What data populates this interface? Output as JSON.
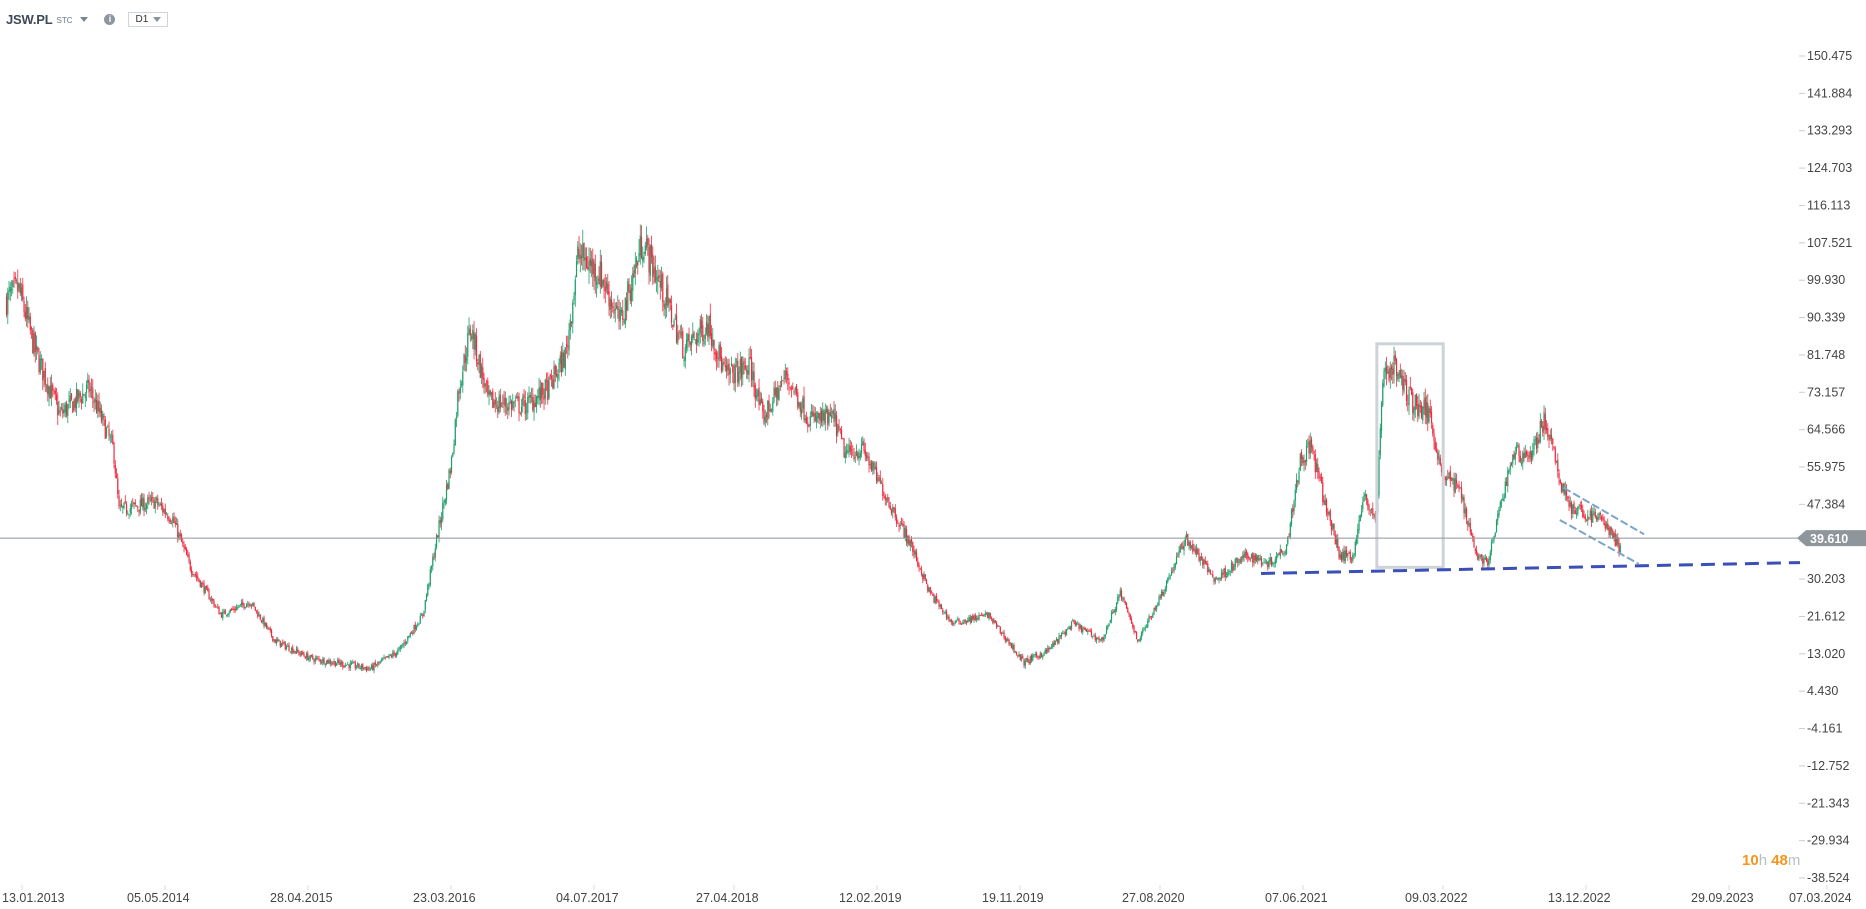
{
  "header": {
    "symbol": "JSW.PL",
    "source": "STC",
    "timeframe": "D1"
  },
  "timer": {
    "hours": "10",
    "h": "h",
    "minutes": "48",
    "m": "m"
  },
  "colors": {
    "up": "#1f9e6a",
    "down": "#f0293e",
    "price_line": "#8e959b",
    "support": "#3b4fb8",
    "channel": "#7aa6c8",
    "box": "#cdd3d9"
  },
  "chart_data": {
    "type": "candlestick",
    "title": "JSW.PL D1",
    "y_ticks": [
      "150.475",
      "141.884",
      "133.293",
      "124.703",
      "116.113",
      "107.521",
      "99.930",
      "90.339",
      "81.748",
      "73.157",
      "64.566",
      "55.975",
      "47.384",
      "39.610",
      "30.203",
      "21.612",
      "13.020",
      "4.430",
      "-4.161",
      "-12.752",
      "-21.343",
      "-29.934",
      "-38.524"
    ],
    "ylim": [
      -38.524,
      150.475
    ],
    "x_ticks": [
      {
        "label": "13.01.2013",
        "t": 2013.03
      },
      {
        "label": "05.05.2014",
        "t": 2014.34
      },
      {
        "label": "28.04.2015",
        "t": 2015.32
      },
      {
        "label": "23.03.2016",
        "t": 2016.22
      },
      {
        "label": "04.07.2017",
        "t": 2017.51
      },
      {
        "label": "27.04.2018",
        "t": 2018.32
      },
      {
        "label": "12.02.2019",
        "t": 2019.12
      },
      {
        "label": "19.11.2019",
        "t": 2019.88
      },
      {
        "label": "27.08.2020",
        "t": 2020.65
      },
      {
        "label": "07.06.2021",
        "t": 2021.43
      },
      {
        "label": "09.03.2022",
        "t": 2022.19
      },
      {
        "label": "13.12.2022",
        "t": 2022.95
      },
      {
        "label": "29.09.2023",
        "t": 2023.74
      },
      {
        "label": "07.03.2024",
        "t": 2024.18
      }
    ],
    "current_price": {
      "value": 39.61,
      "label": "39.610"
    },
    "close_path": [
      [
        2012.87,
        94.4
      ],
      [
        2012.98,
        97
      ],
      [
        2013.14,
        82
      ],
      [
        2013.36,
        68
      ],
      [
        2013.63,
        74
      ],
      [
        2013.85,
        60
      ],
      [
        2013.9,
        46
      ],
      [
        2014.23,
        48
      ],
      [
        2014.38,
        44
      ],
      [
        2014.5,
        33
      ],
      [
        2014.71,
        22
      ],
      [
        2014.91,
        25
      ],
      [
        2015.08,
        16
      ],
      [
        2015.32,
        12
      ],
      [
        2015.7,
        9.6
      ],
      [
        2015.88,
        13.7
      ],
      [
        2016.03,
        22
      ],
      [
        2016.11,
        38
      ],
      [
        2016.21,
        57
      ],
      [
        2016.27,
        74
      ],
      [
        2016.38,
        88
      ],
      [
        2016.54,
        71
      ],
      [
        2016.87,
        70
      ],
      [
        2017.08,
        74
      ],
      [
        2017.24,
        82
      ],
      [
        2017.35,
        105
      ],
      [
        2017.54,
        100
      ],
      [
        2017.65,
        89
      ],
      [
        2017.78,
        108
      ],
      [
        2017.89,
        97
      ],
      [
        2018.02,
        83
      ],
      [
        2018.16,
        89
      ],
      [
        2018.26,
        77
      ],
      [
        2018.4,
        79
      ],
      [
        2018.47,
        67
      ],
      [
        2018.6,
        77
      ],
      [
        2018.73,
        67
      ],
      [
        2018.87,
        67
      ],
      [
        2018.93,
        59
      ],
      [
        2019.03,
        60
      ],
      [
        2019.16,
        49
      ],
      [
        2019.29,
        38
      ],
      [
        2019.39,
        27
      ],
      [
        2019.51,
        20
      ],
      [
        2019.7,
        22
      ],
      [
        2019.89,
        11
      ],
      [
        2020.02,
        13.7
      ],
      [
        2020.16,
        20
      ],
      [
        2020.32,
        16
      ],
      [
        2020.42,
        27
      ],
      [
        2020.52,
        16
      ],
      [
        2020.65,
        27
      ],
      [
        2020.78,
        39.7
      ],
      [
        2020.94,
        30
      ],
      [
        2021.11,
        35.6
      ],
      [
        2021.24,
        34
      ],
      [
        2021.33,
        38
      ],
      [
        2021.4,
        57
      ],
      [
        2021.46,
        61
      ],
      [
        2021.53,
        49
      ],
      [
        2021.62,
        35.6
      ],
      [
        2021.69,
        35.6
      ],
      [
        2021.75,
        49
      ],
      [
        2021.82,
        44
      ],
      [
        2021.85,
        77
      ],
      [
        2021.91,
        79.4
      ],
      [
        2022.01,
        71
      ],
      [
        2022.11,
        68
      ],
      [
        2022.17,
        55
      ],
      [
        2022.27,
        50.6
      ],
      [
        2022.36,
        35.6
      ],
      [
        2022.42,
        34
      ],
      [
        2022.49,
        48
      ],
      [
        2022.55,
        59
      ],
      [
        2022.65,
        59
      ],
      [
        2022.72,
        67
      ],
      [
        2022.8,
        53
      ],
      [
        2022.87,
        46
      ],
      [
        2023.03,
        44
      ],
      [
        2023.13,
        37
      ]
    ],
    "drawings": {
      "box": {
        "t": [
          2021.82,
          2022.18
        ],
        "price": [
          32.9,
          84.3
        ]
      },
      "support_line": {
        "t": [
          2021.19,
          2024.05
        ],
        "price": [
          31.5,
          34.0
        ]
      },
      "channel_upper": {
        "t": [
          2022.82,
          2023.26
        ],
        "price": [
          51.2,
          40.5
        ]
      },
      "channel_lower": {
        "t": [
          2022.8,
          2023.23
        ],
        "price": [
          43.8,
          33.7
        ]
      }
    }
  }
}
